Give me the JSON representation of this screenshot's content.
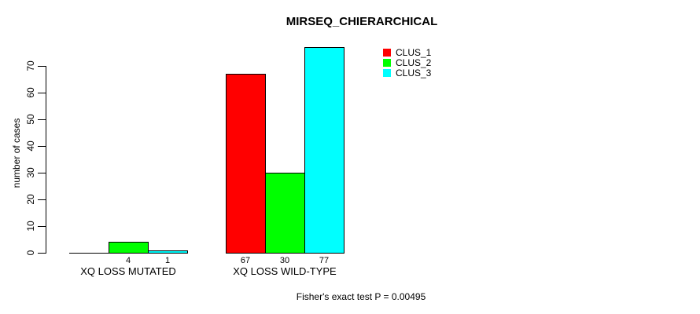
{
  "chart_data": {
    "type": "bar",
    "grouped": true,
    "title": "MIRSEQ_CHIERARCHICAL",
    "categories": [
      "XQ LOSS MUTATED",
      "XQ LOSS WILD-TYPE"
    ],
    "series": [
      {
        "name": "CLUS_1",
        "color": "#ff0000",
        "values": [
          0,
          67
        ],
        "value_labels": [
          "",
          "67"
        ]
      },
      {
        "name": "CLUS_2",
        "color": "#00ff00",
        "values": [
          4,
          30
        ],
        "value_labels": [
          "4",
          "30"
        ]
      },
      {
        "name": "CLUS_3",
        "color": "#00ffff",
        "values": [
          1,
          77
        ],
        "value_labels": [
          "1",
          "77"
        ]
      }
    ],
    "xlabel": "",
    "ylabel": "number of cases",
    "yticks": [
      0,
      10,
      20,
      30,
      40,
      50,
      60,
      70
    ],
    "ylim": [
      0,
      77
    ],
    "grid": false,
    "legend": {
      "position": "top-right",
      "entries": [
        "CLUS_1",
        "CLUS_2",
        "CLUS_3"
      ]
    },
    "annotation": "Fisher's exact test P = 0.00495",
    "colors": {
      "background": "#ffffff",
      "axis": "#000000",
      "text": "#000000",
      "bar_border": "#000000"
    }
  }
}
